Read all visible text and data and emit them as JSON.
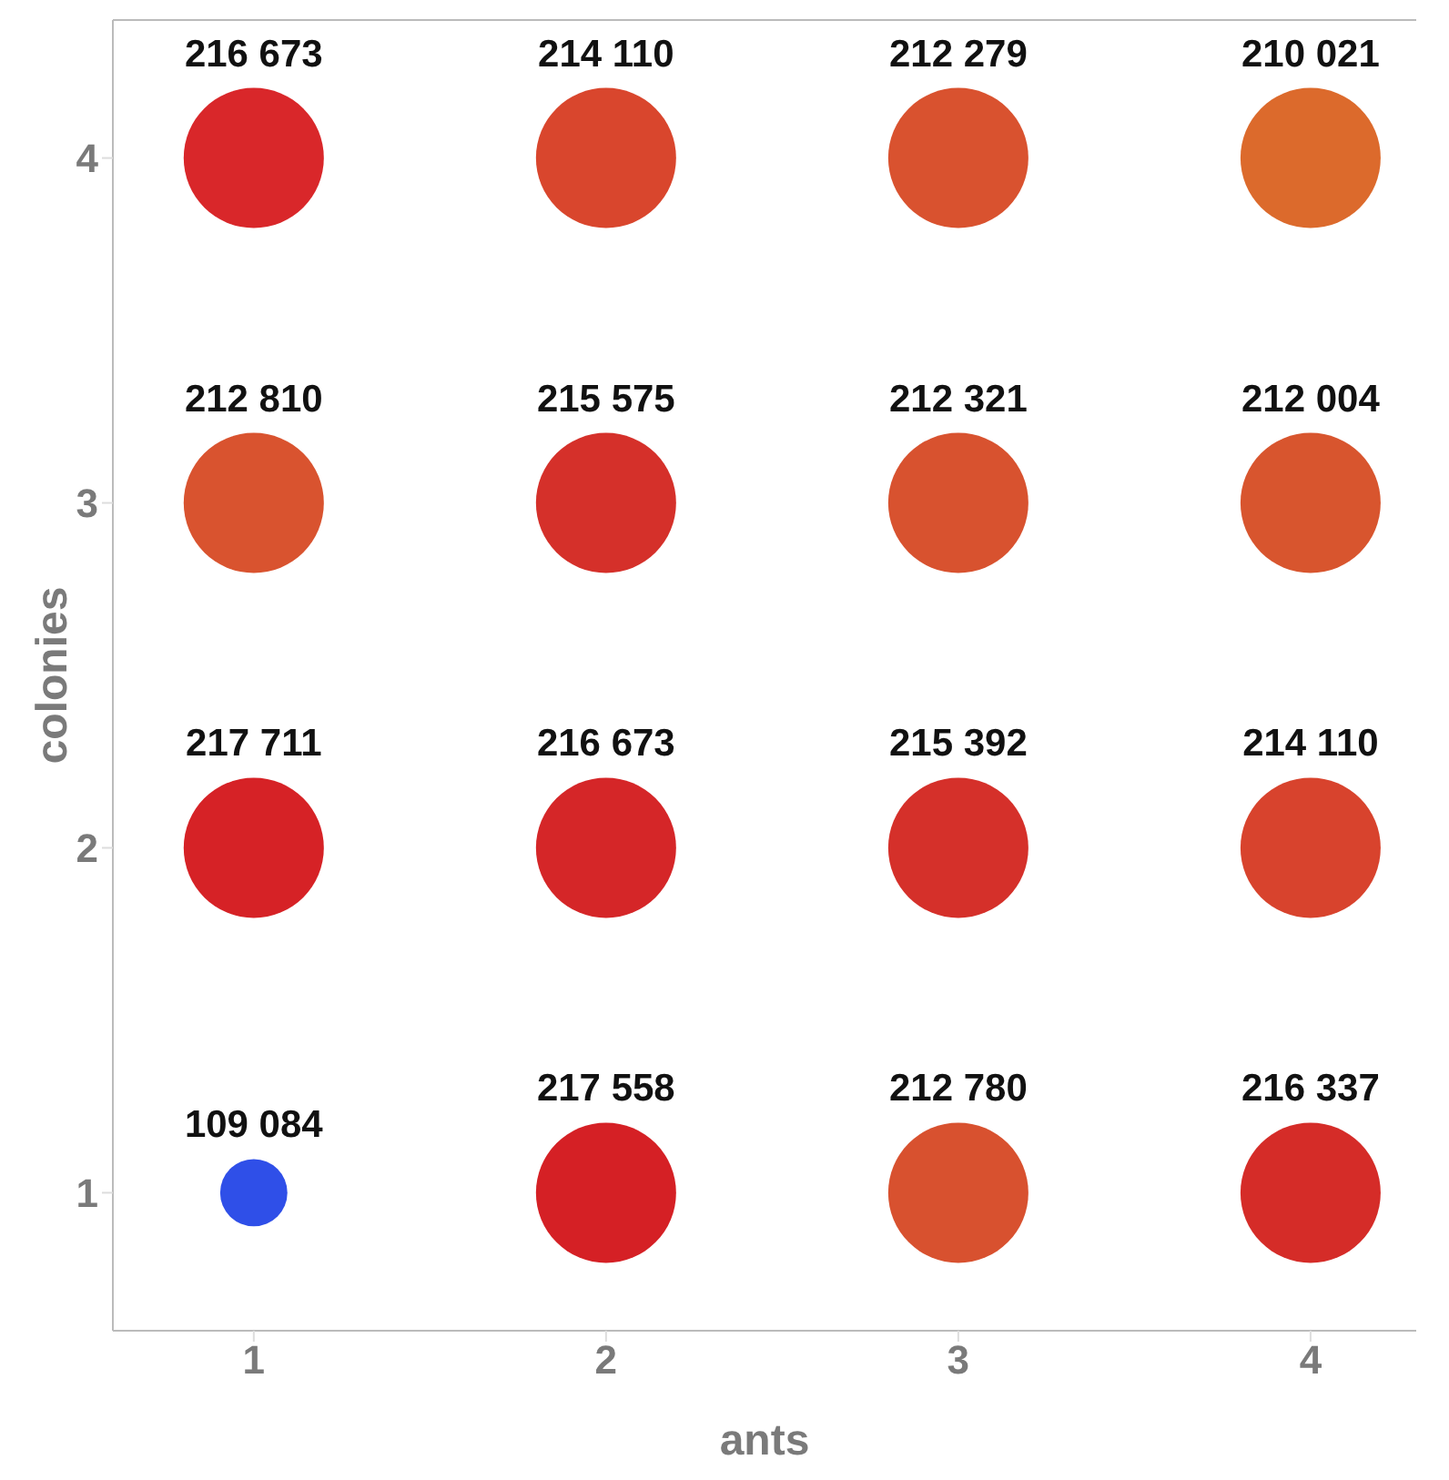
{
  "chart_data": {
    "type": "bubble",
    "xlabel": "ants",
    "ylabel": "colonies",
    "xlim": [
      0.6,
      4.3
    ],
    "ylim": [
      0.6,
      4.4
    ],
    "xticks": [
      1,
      2,
      3,
      4
    ],
    "yticks": [
      1,
      2,
      3,
      4
    ],
    "series": [
      {
        "x": [
          1,
          2,
          3,
          4,
          1,
          2,
          3,
          4,
          1,
          2,
          3,
          4,
          1,
          2,
          3,
          4
        ],
        "values": [
          4,
          4,
          4,
          4,
          3,
          3,
          3,
          3,
          2,
          2,
          2,
          2,
          1,
          1,
          1,
          1
        ],
        "sizes": [
          1,
          1,
          1,
          1,
          1,
          1,
          1,
          1,
          1,
          1,
          1,
          1,
          0.23,
          1,
          1,
          1
        ],
        "colors": [
          "#d9272a",
          "#d9462d",
          "#d9522f",
          "#dc6a2c",
          "#d9532f",
          "#d5302a",
          "#d8522f",
          "#d8552e",
          "#d62226",
          "#d52628",
          "#d5302a",
          "#d8432d",
          "#2f4fe8",
          "#d52025",
          "#d8512f",
          "#d52c28"
        ]
      }
    ],
    "annotations": [
      {
        "text": "216 673",
        "x": 1,
        "y": 4
      },
      {
        "text": "214 110",
        "x": 2,
        "y": 4
      },
      {
        "text": "212 279",
        "x": 3,
        "y": 4
      },
      {
        "text": "210 021",
        "x": 4,
        "y": 4
      },
      {
        "text": "212 810",
        "x": 1,
        "y": 3
      },
      {
        "text": "215 575",
        "x": 2,
        "y": 3
      },
      {
        "text": "212 321",
        "x": 3,
        "y": 3
      },
      {
        "text": "212 004",
        "x": 4,
        "y": 3
      },
      {
        "text": "217 711",
        "x": 1,
        "y": 2
      },
      {
        "text": "216 673",
        "x": 2,
        "y": 2
      },
      {
        "text": "215 392",
        "x": 3,
        "y": 2
      },
      {
        "text": "214 110",
        "x": 4,
        "y": 2
      },
      {
        "text": "109 084",
        "x": 1,
        "y": 1
      },
      {
        "text": "217 558",
        "x": 2,
        "y": 1
      },
      {
        "text": "212 780",
        "x": 3,
        "y": 1
      },
      {
        "text": "216 337",
        "x": 4,
        "y": 1
      }
    ],
    "grid": false,
    "legend": false
  }
}
